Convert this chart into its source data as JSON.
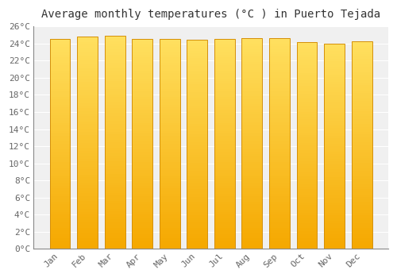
{
  "title": "Average monthly temperatures (°C ) in Puerto Tejada",
  "months": [
    "Jan",
    "Feb",
    "Mar",
    "Apr",
    "May",
    "Jun",
    "Jul",
    "Aug",
    "Sep",
    "Oct",
    "Nov",
    "Dec"
  ],
  "values": [
    24.5,
    24.8,
    24.9,
    24.5,
    24.5,
    24.4,
    24.5,
    24.6,
    24.6,
    24.2,
    24.0,
    24.3
  ],
  "bar_color_bottom": "#F5A800",
  "bar_color_top": "#FFE060",
  "ylim": [
    0,
    26
  ],
  "yticks": [
    0,
    2,
    4,
    6,
    8,
    10,
    12,
    14,
    16,
    18,
    20,
    22,
    24,
    26
  ],
  "ytick_labels": [
    "0°C",
    "2°C",
    "4°C",
    "6°C",
    "8°C",
    "10°C",
    "12°C",
    "14°C",
    "16°C",
    "18°C",
    "20°C",
    "22°C",
    "24°C",
    "26°C"
  ],
  "background_color": "#ffffff",
  "plot_bg_color": "#f0f0f0",
  "grid_color": "#ffffff",
  "title_fontsize": 10,
  "tick_fontsize": 8,
  "bar_edge_color": "#D4900A",
  "bar_width": 0.75,
  "figsize": [
    5.0,
    3.5
  ],
  "dpi": 100
}
